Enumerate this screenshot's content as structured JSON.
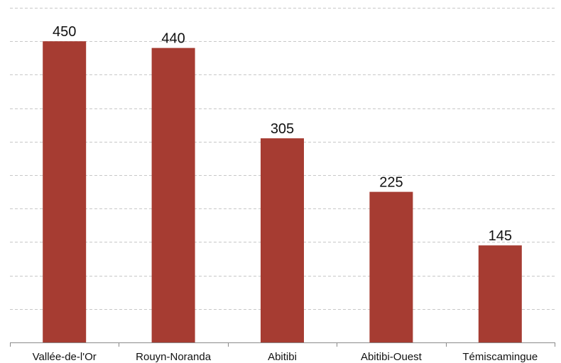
{
  "chart_data": {
    "type": "bar",
    "categories": [
      "Vallée-de-l'Or",
      "Rouyn-Noranda",
      "Abitibi",
      "Abitibi-Ouest",
      "Témiscamingue"
    ],
    "values": [
      450,
      440,
      305,
      225,
      145
    ],
    "data_labels": [
      "450",
      "440",
      "305",
      "225",
      "145"
    ],
    "title": "",
    "xlabel": "",
    "ylabel": "",
    "ylim": [
      0,
      500
    ],
    "grid": true,
    "legend": "none",
    "colors": {
      "bar": "#A63C32"
    }
  }
}
